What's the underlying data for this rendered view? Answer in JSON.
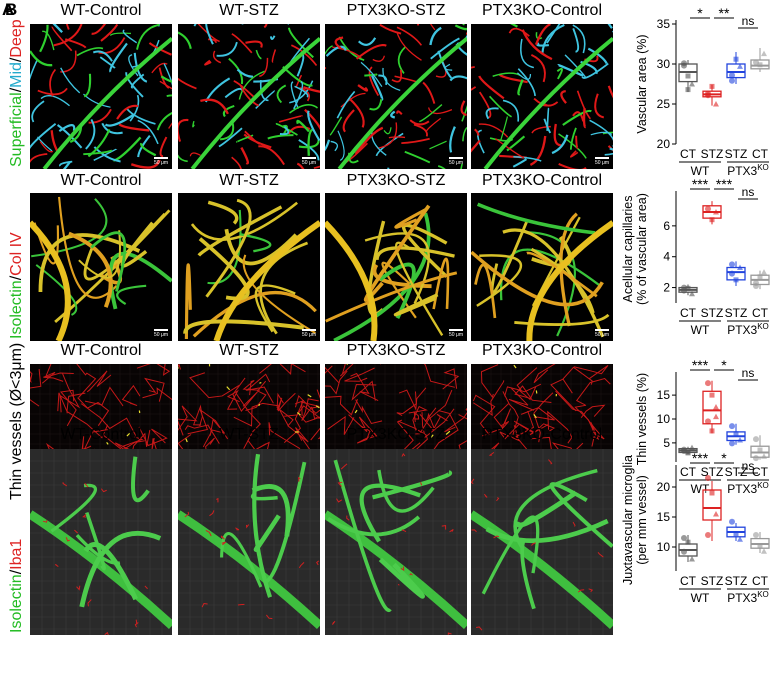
{
  "panel_letters": [
    "A",
    "B"
  ],
  "rows": [
    {
      "ylabel_parts": [
        {
          "text": "Superficial",
          "color": "#22bb22"
        },
        {
          "text": "/",
          "color": "#000000"
        },
        {
          "text": "Mid",
          "color": "#22aacc"
        },
        {
          "text": "/",
          "color": "#000000"
        },
        {
          "text": "Deep",
          "color": "#dd2222"
        }
      ],
      "columns": [
        "WT-Control",
        "WT-STZ",
        "PTX3KO-STZ",
        "PTX3KO-Control"
      ],
      "scale": "50 μm"
    },
    {
      "ylabel_parts": [
        {
          "text": "Isolectin",
          "color": "#22bb22"
        },
        {
          "text": "/",
          "color": "#000000"
        },
        {
          "text": "Col IV",
          "color": "#dd2222"
        }
      ],
      "columns": [
        "WT-Control",
        "WT-STZ",
        "PTX3KO-STZ",
        "PTX3KO-Control"
      ],
      "scale": "50 μm"
    },
    {
      "ylabel_parts": [
        {
          "text": "Thin vessels (Ø<3μm)",
          "color": "#000000"
        }
      ],
      "columns": [
        "WT-Control",
        "WT-STZ",
        "PTX3KO-STZ",
        "PTX3KO-Control"
      ]
    },
    {
      "ylabel_parts": [
        {
          "text": "Isolectin",
          "color": "#22bb22"
        },
        {
          "text": "/",
          "color": "#000000"
        },
        {
          "text": "Iba1",
          "color": "#dd2222"
        }
      ],
      "columns": [
        "WT-Control",
        "WT-STZ",
        "PTX3KO-STZ",
        "PTX3KO-Control"
      ]
    }
  ],
  "chart_data": [
    {
      "type": "box",
      "ylabel": "Vascular area (%)",
      "ylim": [
        20,
        35
      ],
      "yticks": [
        20,
        25,
        30,
        35
      ],
      "categories": [
        "CT",
        "STZ",
        "STZ",
        "CT"
      ],
      "group_labels": [
        "WT",
        "PTX3KO"
      ],
      "colors": [
        "#555555",
        "#dd2222",
        "#2244dd",
        "#999999"
      ],
      "boxes": [
        {
          "q1": 27.8,
          "median": 29.0,
          "q3": 30.0,
          "min": 26.5,
          "max": 30.5,
          "points": [
            29.8,
            28.5,
            27.5,
            30.1,
            26.8
          ]
        },
        {
          "q1": 25.9,
          "median": 26.2,
          "q3": 26.6,
          "min": 24.8,
          "max": 27.4,
          "points": [
            26.1,
            27.2,
            25.0,
            26.3
          ]
        },
        {
          "q1": 28.3,
          "median": 29.0,
          "q3": 30.0,
          "min": 27.5,
          "max": 31.5,
          "points": [
            28.6,
            30.6,
            29.7,
            27.9
          ]
        },
        {
          "q1": 29.4,
          "median": 29.8,
          "q3": 30.5,
          "min": 29.0,
          "max": 32.0,
          "points": [
            30.2,
            29.9,
            31.3
          ]
        }
      ],
      "significance": [
        {
          "from": 0,
          "to": 1,
          "label": "*"
        },
        {
          "from": 1,
          "to": 2,
          "label": "**"
        },
        {
          "from": 2,
          "to": 3,
          "label": "ns"
        }
      ]
    },
    {
      "type": "box",
      "ylabel": "Acellular capillaries",
      "ylabel2": "(% of vascular area)",
      "ylim": [
        1,
        8
      ],
      "yticks": [
        2,
        4,
        6
      ],
      "categories": [
        "CT",
        "STZ",
        "STZ",
        "CT"
      ],
      "group_labels": [
        "WT",
        "PTX3KO"
      ],
      "colors": [
        "#555555",
        "#dd2222",
        "#2244dd",
        "#999999"
      ],
      "boxes": [
        {
          "q1": 1.7,
          "median": 1.85,
          "q3": 2.0,
          "min": 1.5,
          "max": 2.2,
          "points": [
            1.8,
            1.95,
            1.6,
            2.0
          ]
        },
        {
          "q1": 6.5,
          "median": 6.9,
          "q3": 7.3,
          "min": 6.1,
          "max": 7.6,
          "points": [
            7.1,
            6.4,
            6.9
          ]
        },
        {
          "q1": 2.5,
          "median": 3.0,
          "q3": 3.3,
          "min": 2.1,
          "max": 3.7,
          "points": [
            2.9,
            2.5,
            3.3,
            3.5
          ]
        },
        {
          "q1": 2.2,
          "median": 2.5,
          "q3": 2.8,
          "min": 1.9,
          "max": 3.1,
          "points": [
            2.3,
            2.7,
            3.0,
            2.1
          ]
        }
      ],
      "significance": [
        {
          "from": 0,
          "to": 1,
          "label": "***"
        },
        {
          "from": 1,
          "to": 2,
          "label": "***"
        },
        {
          "from": 2,
          "to": 3,
          "label": "ns"
        }
      ]
    },
    {
      "type": "box",
      "ylabel": "Thin vessels (%)",
      "ylim": [
        1,
        19
      ],
      "yticks": [
        5,
        10,
        15
      ],
      "categories": [
        "CT",
        "STZ",
        "STZ",
        "CT"
      ],
      "group_labels": [
        "WT",
        "PTX3KO"
      ],
      "colors": [
        "#555555",
        "#dd2222",
        "#2244dd",
        "#999999"
      ],
      "boxes": [
        {
          "q1": 3.0,
          "median": 3.4,
          "q3": 3.8,
          "min": 2.7,
          "max": 4.2,
          "points": [
            3.6,
            3.1,
            4.0,
            3.3,
            2.9
          ]
        },
        {
          "q1": 9.0,
          "median": 11.8,
          "q3": 15.8,
          "min": 7.0,
          "max": 18.0,
          "points": [
            17.5,
            15.0,
            12.5,
            9.5,
            7.5,
            10.5
          ]
        },
        {
          "q1": 5.5,
          "median": 6.4,
          "q3": 7.3,
          "min": 4.6,
          "max": 9.0,
          "points": [
            8.5,
            6.9,
            5.6,
            4.9
          ]
        },
        {
          "q1": 2.0,
          "median": 3.0,
          "q3": 4.3,
          "min": 1.5,
          "max": 6.6,
          "points": [
            5.8,
            3.5,
            2.2,
            1.8
          ]
        }
      ],
      "significance": [
        {
          "from": 0,
          "to": 1,
          "label": "***"
        },
        {
          "from": 1,
          "to": 2,
          "label": "*"
        },
        {
          "from": 2,
          "to": 3,
          "label": "ns"
        }
      ]
    },
    {
      "type": "box",
      "ylabel": "Juxtavascular microglia",
      "ylabel2": "(per mm vessel)",
      "ylim": [
        6,
        23
      ],
      "yticks": [
        10,
        15,
        20
      ],
      "categories": [
        "CT",
        "STZ",
        "STZ",
        "CT"
      ],
      "group_labels": [
        "WT",
        "PTX3KO"
      ],
      "colors": [
        "#555555",
        "#dd2222",
        "#2244dd",
        "#999999"
      ],
      "boxes": [
        {
          "q1": 8.5,
          "median": 9.5,
          "q3": 10.5,
          "min": 7.5,
          "max": 12.0,
          "points": [
            9.2,
            10.8,
            8.0,
            11.5
          ]
        },
        {
          "q1": 14.5,
          "median": 16.5,
          "q3": 19.5,
          "min": 11.0,
          "max": 21.0,
          "points": [
            21.5,
            19.0,
            15.5,
            12.0
          ]
        },
        {
          "q1": 11.7,
          "median": 12.5,
          "q3": 13.3,
          "min": 11.0,
          "max": 14.0,
          "points": [
            14.2,
            12.2,
            11.3
          ]
        },
        {
          "q1": 9.8,
          "median": 10.5,
          "q3": 11.4,
          "min": 9.0,
          "max": 12.5,
          "points": [
            12.0,
            10.2,
            9.3
          ]
        }
      ],
      "significance": [
        {
          "from": 0,
          "to": 1,
          "label": "***"
        },
        {
          "from": 1,
          "to": 2,
          "label": "*"
        },
        {
          "from": 2,
          "to": 3,
          "label": "ns"
        }
      ]
    }
  ]
}
